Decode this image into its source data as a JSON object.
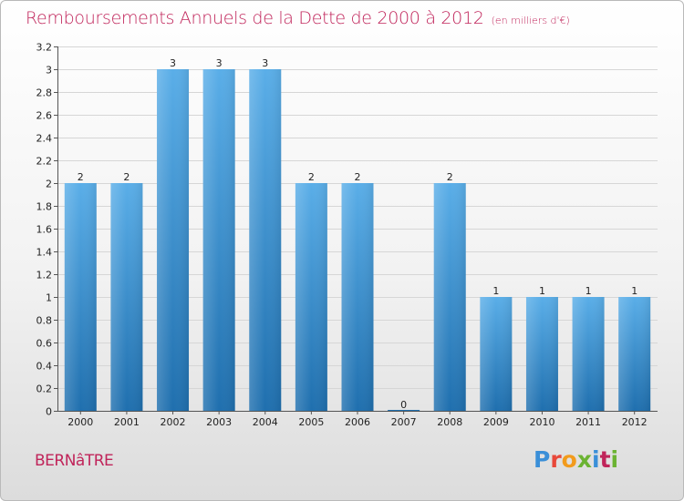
{
  "header": {
    "title": "Remboursements Annuels de la Dette de 2000 à 2012",
    "unit": "(en milliers d'€)"
  },
  "footer": {
    "place": "BERNâTRE",
    "logo": "Proxiti",
    "logo_colors": [
      "#3a8fd8",
      "#e8483a",
      "#f29b1c",
      "#6bb332",
      "#3a8fd8",
      "#c0245a",
      "#6bb332"
    ]
  },
  "colors": {
    "accent": "#c0245a",
    "bar_top": "#5aaee8",
    "bar_bottom": "#1f6fae"
  },
  "chart_data": {
    "type": "bar",
    "title": "Remboursements Annuels de la Dette de 2000 à 2012",
    "xlabel": "",
    "ylabel": "",
    "categories": [
      "2000",
      "2001",
      "2002",
      "2003",
      "2004",
      "2005",
      "2006",
      "2007",
      "2008",
      "2009",
      "2010",
      "2011",
      "2012"
    ],
    "values": [
      2,
      2,
      3,
      3,
      3,
      2,
      2,
      0,
      2,
      1,
      1,
      1,
      1
    ],
    "data_labels": [
      "2",
      "2",
      "3",
      "3",
      "3",
      "2",
      "2",
      "0",
      "2",
      "1",
      "1",
      "1",
      "1"
    ],
    "ylim": [
      0,
      3.2
    ],
    "yticks": [
      0,
      0.2,
      0.4,
      0.6,
      0.8,
      1,
      1.2,
      1.4,
      1.6,
      1.8,
      2,
      2.2,
      2.4,
      2.6,
      2.8,
      3,
      3.2
    ],
    "ytick_labels": [
      "0",
      "0.2",
      "0.4",
      "0.6",
      "0.8",
      "1",
      "1.2",
      "1.4",
      "1.6",
      "1.8",
      "2",
      "2.2",
      "2.4",
      "2.6",
      "2.8",
      "3",
      "3.2"
    ],
    "grid": true,
    "legend": "none"
  }
}
